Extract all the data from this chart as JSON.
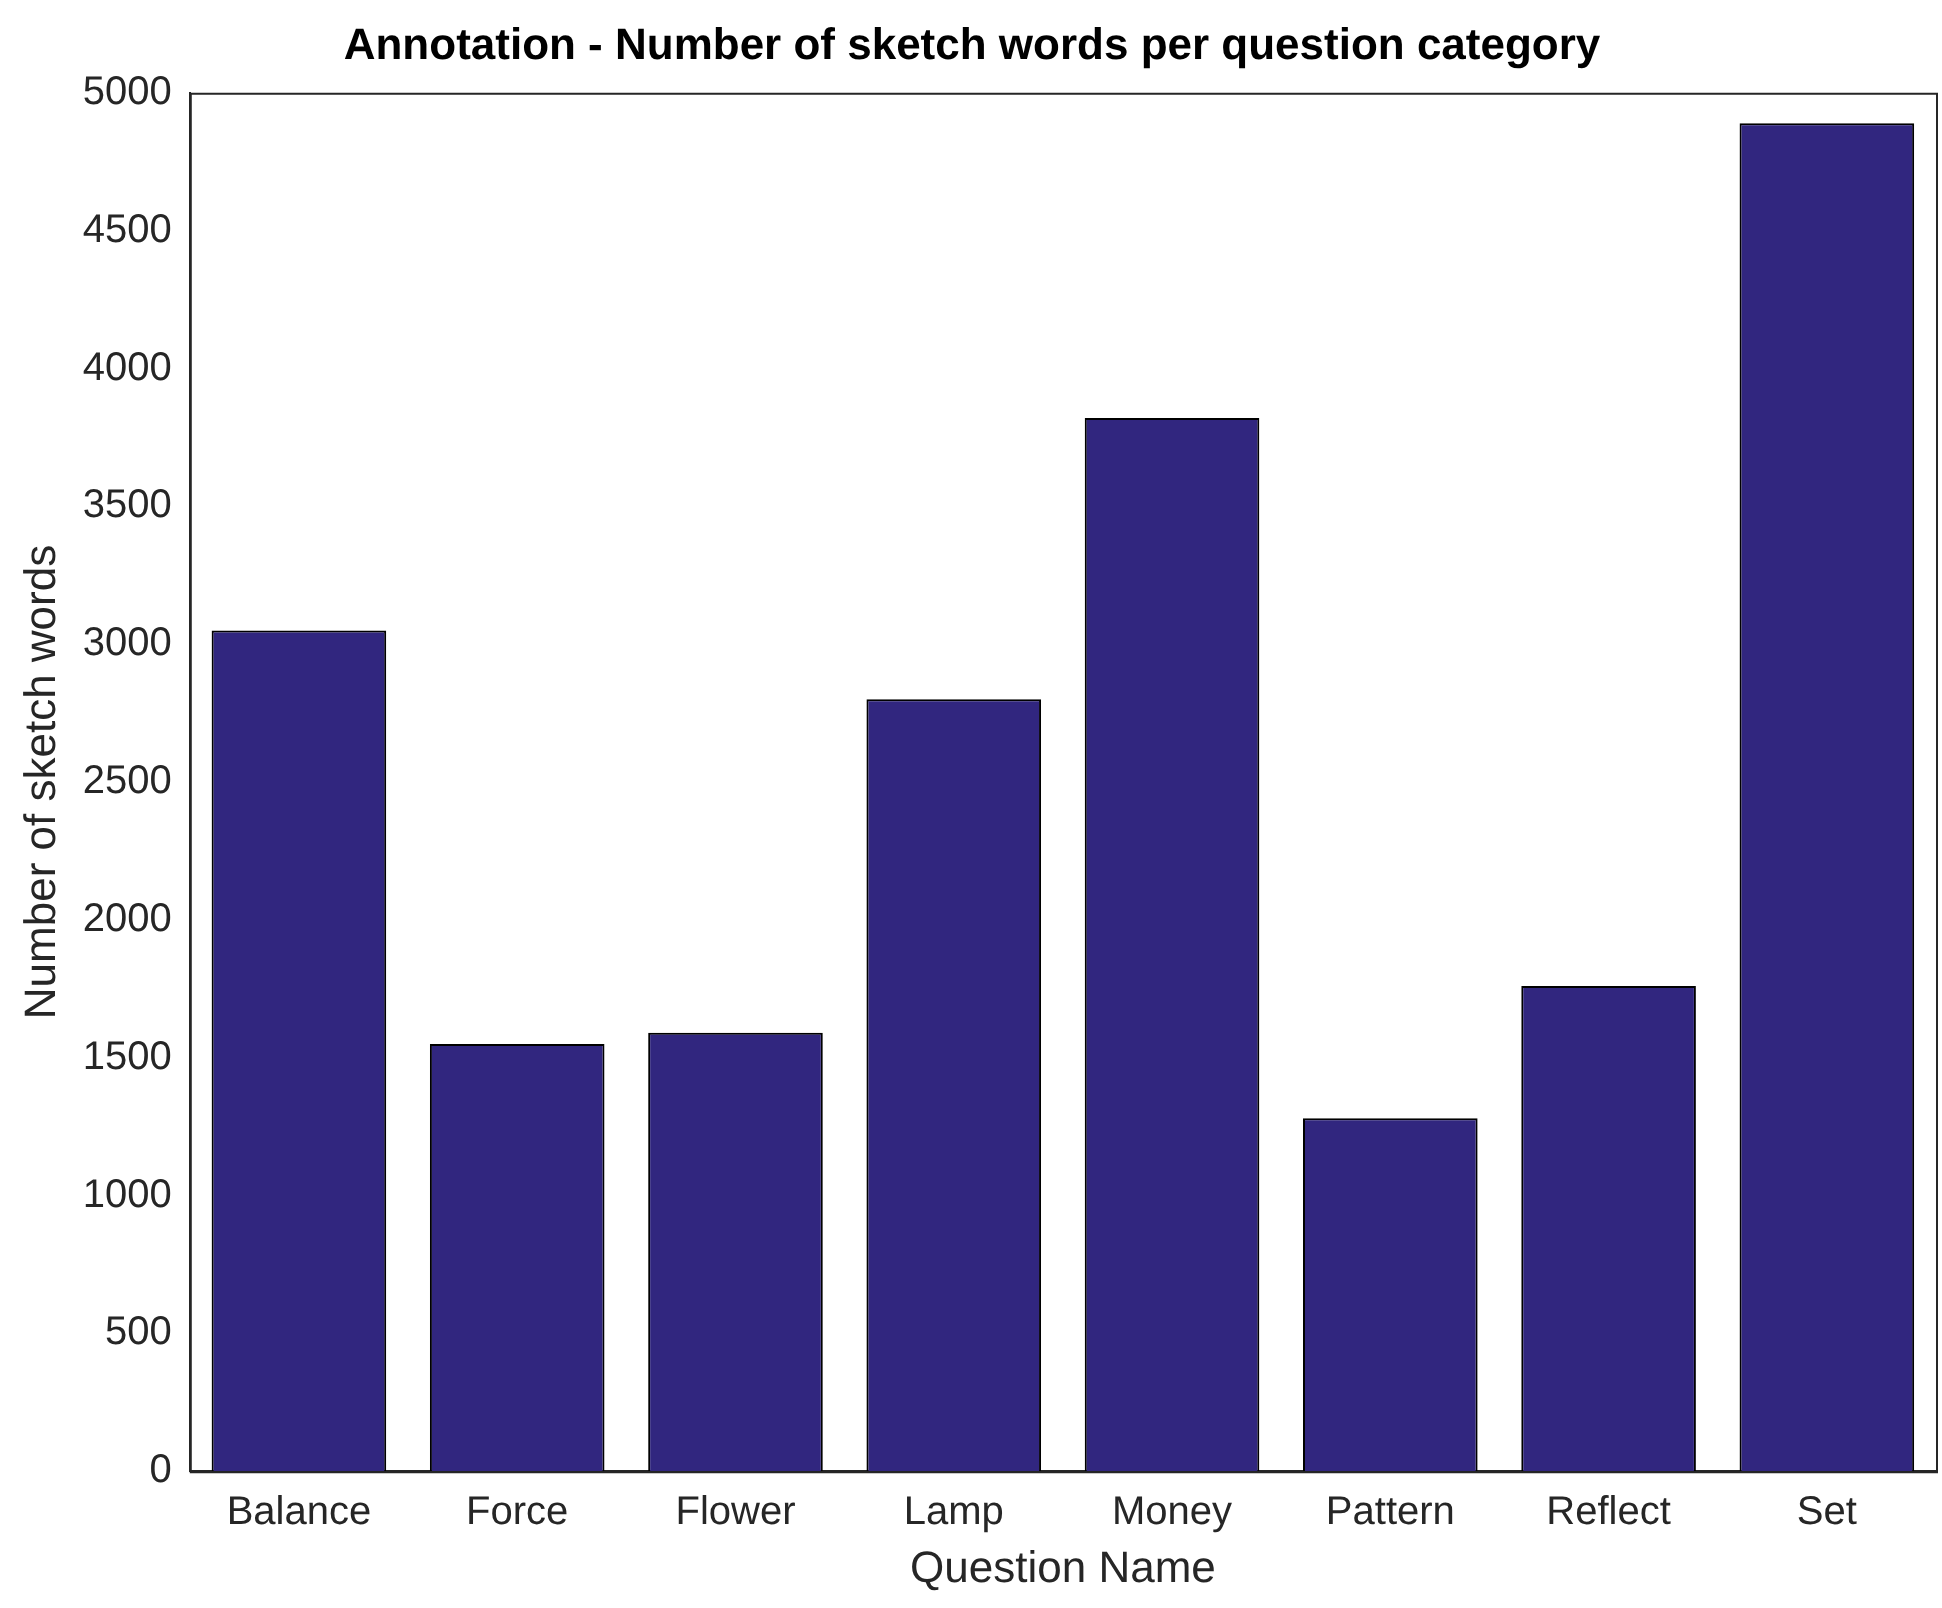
{
  "chart_data": {
    "type": "bar",
    "title": "Annotation - Number of sketch words per question category",
    "xlabel": "Question Name",
    "ylabel": "Number of sketch words",
    "categories": [
      "Balance",
      "Force",
      "Flower",
      "Lamp",
      "Money",
      "Pattern",
      "Reflect",
      "Set"
    ],
    "values": [
      3050,
      1550,
      1590,
      2800,
      3820,
      1280,
      1760,
      4890
    ],
    "color": "#31267f",
    "ylim": [
      0,
      5000
    ],
    "yticks": [
      0,
      500,
      1000,
      1500,
      2000,
      2500,
      3000,
      3500,
      4000,
      4500,
      5000
    ],
    "grid": false,
    "legend": false
  }
}
